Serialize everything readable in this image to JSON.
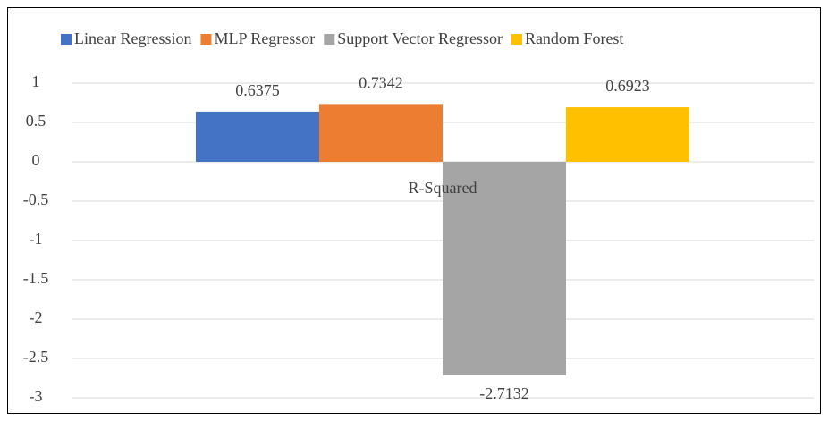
{
  "chart_data": {
    "type": "bar",
    "categories": [
      "R-Squared"
    ],
    "series": [
      {
        "name": "Linear Regression",
        "color": "#4472c4",
        "values": [
          0.6375
        ]
      },
      {
        "name": "MLP Regressor",
        "color": "#ed7d31",
        "values": [
          0.7342
        ]
      },
      {
        "name": "Support Vector Regressor",
        "color": "#a5a5a5",
        "values": [
          -2.7132
        ]
      },
      {
        "name": "Random Forest",
        "color": "#ffc000",
        "values": [
          0.6923
        ]
      }
    ],
    "ylim": [
      -3,
      1
    ],
    "yticks": [
      -3,
      -2.5,
      -2,
      -1.5,
      -1,
      -0.5,
      0,
      0.5,
      1
    ],
    "grid": true,
    "legend": "top"
  }
}
